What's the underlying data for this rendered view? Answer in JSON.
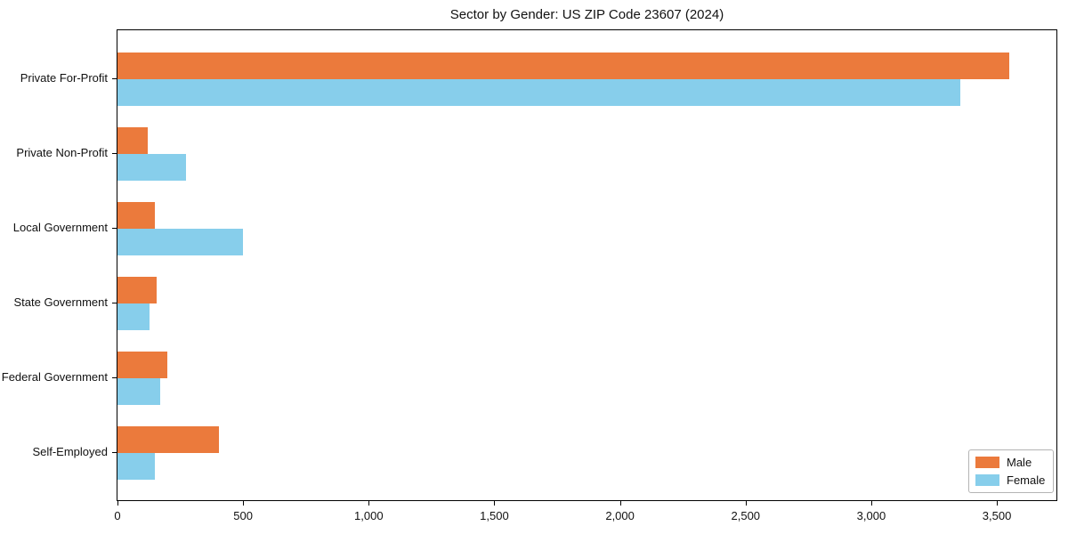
{
  "title": "Sector by Gender: US ZIP Code 23607 (2024)",
  "colors": {
    "male": "#EB7A3C",
    "female": "#87CEEB",
    "axis": "#000000",
    "background": "#FFFFFF"
  },
  "legend": {
    "position": "lower right",
    "items": [
      {
        "label": "Male",
        "color": "#EB7A3C"
      },
      {
        "label": "Female",
        "color": "#87CEEB"
      }
    ]
  },
  "chart_data": {
    "type": "bar",
    "orientation": "horizontal",
    "title": "Sector by Gender: US ZIP Code 23607 (2024)",
    "categories": [
      "Private For-Profit",
      "Private Non-Profit",
      "Local Government",
      "State Government",
      "Federal Government",
      "Self-Employed"
    ],
    "series": [
      {
        "name": "Male",
        "color": "#EB7A3C",
        "values": [
          3550,
          120,
          150,
          155,
          200,
          405
        ]
      },
      {
        "name": "Female",
        "color": "#87CEEB",
        "values": [
          3355,
          272,
          498,
          128,
          170,
          148
        ]
      }
    ],
    "xlabel": "",
    "ylabel": "",
    "xlim": [
      0,
      3737
    ],
    "x_ticks": [
      0,
      500,
      1000,
      1500,
      2000,
      2500,
      3000,
      3500
    ],
    "x_tick_labels": [
      "0",
      "500",
      "1,000",
      "1,500",
      "2,000",
      "2,500",
      "3,000",
      "3,500"
    ],
    "grid": false,
    "legend_position": "lower right"
  }
}
